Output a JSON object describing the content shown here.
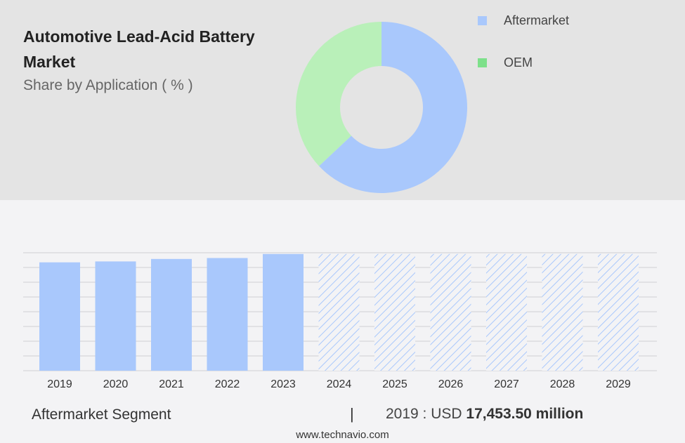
{
  "title": "Automotive Lead-Acid Battery Market",
  "subtitle": "Share by Application ( % )",
  "colors": {
    "aftermarket": "#a9c8fc",
    "oem": "#b9f0b9",
    "oem_legend": "#7de08a",
    "grid": "#cfcfd4"
  },
  "legend": [
    {
      "label": "Aftermarket",
      "color": "#a9c8fc"
    },
    {
      "label": "OEM",
      "color": "#7de08a"
    }
  ],
  "chart_data": [
    {
      "type": "pie",
      "donut": true,
      "slices": [
        {
          "label": "Aftermarket",
          "value": 63
        },
        {
          "label": "OEM",
          "value": 37
        }
      ]
    },
    {
      "type": "bar",
      "categories": [
        "2019",
        "2020",
        "2021",
        "2022",
        "2023",
        "2024",
        "2025",
        "2026",
        "2027",
        "2028",
        "2029"
      ],
      "values": [
        17453.5,
        17600,
        18000,
        18150,
        18800,
        null,
        null,
        null,
        null,
        null,
        null
      ],
      "forecast_categories": [
        "2024",
        "2025",
        "2026",
        "2027",
        "2028",
        "2029"
      ],
      "ylim": [
        0,
        19000
      ],
      "grid": true
    }
  ],
  "footer": {
    "segment_label": "Aftermarket Segment",
    "separator": "|",
    "year_prefix": "2019 : USD",
    "value": "17,453.50 million",
    "site": "www.technavio.com"
  }
}
